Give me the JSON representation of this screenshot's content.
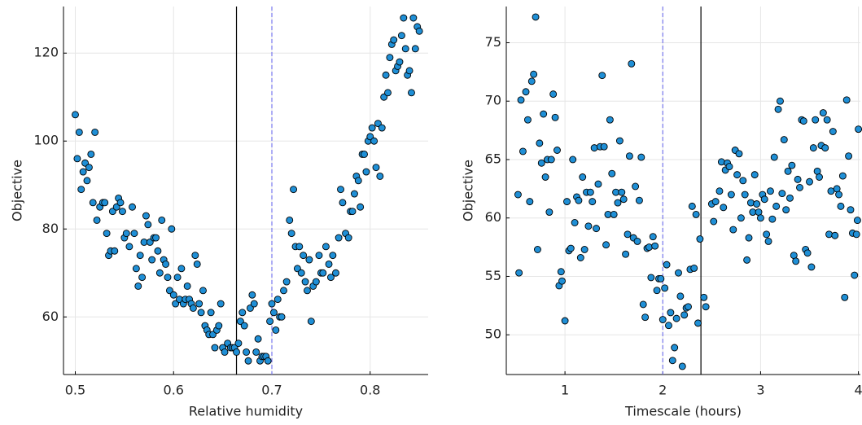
{
  "chart_data": [
    {
      "type": "scatter",
      "xlabel": "Relative humidity",
      "ylabel": "Objective",
      "color": "#1f8fd6",
      "grid": true,
      "xlim": [
        0.488,
        0.859
      ],
      "ylim": [
        46.9,
        130.6
      ],
      "xticks": [
        0.5,
        0.6,
        0.7,
        0.8
      ],
      "yticks": [
        60,
        80,
        100,
        120
      ],
      "vlines": [
        {
          "x": 0.664,
          "color": "#000000",
          "dashed": false
        },
        {
          "x": 0.7,
          "color": "#7777ee",
          "dashed": true
        }
      ],
      "x": [
        0.5,
        0.502,
        0.504,
        0.506,
        0.508,
        0.51,
        0.512,
        0.514,
        0.516,
        0.518,
        0.52,
        0.522,
        0.525,
        0.528,
        0.53,
        0.532,
        0.534,
        0.536,
        0.538,
        0.54,
        0.542,
        0.544,
        0.546,
        0.548,
        0.55,
        0.552,
        0.555,
        0.558,
        0.56,
        0.562,
        0.564,
        0.566,
        0.568,
        0.57,
        0.572,
        0.574,
        0.576,
        0.578,
        0.58,
        0.582,
        0.584,
        0.586,
        0.588,
        0.59,
        0.592,
        0.594,
        0.596,
        0.598,
        0.6,
        0.602,
        0.604,
        0.606,
        0.608,
        0.61,
        0.612,
        0.614,
        0.616,
        0.618,
        0.62,
        0.622,
        0.624,
        0.626,
        0.628,
        0.63,
        0.632,
        0.634,
        0.636,
        0.638,
        0.64,
        0.642,
        0.644,
        0.646,
        0.648,
        0.65,
        0.652,
        0.655,
        0.658,
        0.66,
        0.662,
        0.664,
        0.666,
        0.668,
        0.67,
        0.672,
        0.674,
        0.676,
        0.678,
        0.68,
        0.682,
        0.684,
        0.686,
        0.688,
        0.69,
        0.692,
        0.694,
        0.696,
        0.698,
        0.7,
        0.702,
        0.704,
        0.706,
        0.708,
        0.71,
        0.712,
        0.715,
        0.718,
        0.72,
        0.722,
        0.724,
        0.726,
        0.728,
        0.73,
        0.732,
        0.734,
        0.736,
        0.738,
        0.74,
        0.742,
        0.745,
        0.748,
        0.75,
        0.752,
        0.755,
        0.758,
        0.76,
        0.762,
        0.765,
        0.768,
        0.77,
        0.772,
        0.775,
        0.778,
        0.78,
        0.782,
        0.784,
        0.786,
        0.788,
        0.79,
        0.792,
        0.794,
        0.796,
        0.798,
        0.8,
        0.802,
        0.804,
        0.806,
        0.808,
        0.81,
        0.812,
        0.814,
        0.816,
        0.818,
        0.82,
        0.822,
        0.824,
        0.826,
        0.828,
        0.83,
        0.832,
        0.834,
        0.836,
        0.838,
        0.84,
        0.842,
        0.844,
        0.846,
        0.848,
        0.85
      ],
      "values": [
        106,
        96,
        102,
        89,
        93,
        95,
        91,
        94,
        97,
        86,
        102,
        82,
        85,
        86,
        86,
        79,
        74,
        75,
        84,
        75,
        85,
        87,
        86,
        84,
        78,
        79,
        76,
        85,
        79,
        71,
        67,
        74,
        69,
        77,
        83,
        81,
        77,
        73,
        78,
        78,
        75,
        70,
        82,
        73,
        72,
        69,
        66,
        80,
        65,
        63,
        69,
        64,
        71,
        63,
        64,
        67,
        64,
        63,
        62,
        74,
        72,
        63,
        61,
        66,
        58,
        57,
        56,
        61,
        56,
        53,
        57,
        58,
        63,
        53,
        52,
        54,
        53,
        53,
        53,
        52,
        54,
        59,
        61,
        58,
        52,
        50,
        62,
        65,
        63,
        52,
        55,
        50,
        51,
        51,
        51,
        50,
        59,
        63,
        61,
        57,
        64,
        60,
        60,
        66,
        68,
        82,
        79,
        89,
        76,
        71,
        76,
        70,
        74,
        68,
        66,
        73,
        59,
        67,
        68,
        74,
        70,
        70,
        76,
        72,
        69,
        74,
        70,
        78,
        89,
        86,
        79,
        78,
        84,
        84,
        88,
        92,
        91,
        85,
        97,
        97,
        93,
        100,
        101,
        103,
        100,
        94,
        104,
        92,
        103,
        110,
        115,
        111,
        119,
        122,
        123,
        116,
        117,
        118,
        124,
        128,
        121,
        115,
        116,
        111,
        128,
        121,
        126,
        125
      ]
    },
    {
      "type": "scatter",
      "xlabel": "Timescale (hours)",
      "ylabel": "Objective",
      "color": "#1f8fd6",
      "grid": true,
      "xlim": [
        0.4,
        4.02
      ],
      "ylim": [
        46.6,
        78.1
      ],
      "xticks": [
        1,
        2,
        3,
        4
      ],
      "yticks": [
        50,
        55,
        60,
        65,
        70,
        75
      ],
      "vlines": [
        {
          "x": 2.39,
          "color": "#000000",
          "dashed": false
        },
        {
          "x": 2,
          "color": "#7777ee",
          "dashed": true
        }
      ],
      "x": [
        0.52,
        0.53,
        0.55,
        0.57,
        0.6,
        0.62,
        0.64,
        0.66,
        0.68,
        0.7,
        0.72,
        0.74,
        0.76,
        0.78,
        0.8,
        0.82,
        0.84,
        0.86,
        0.88,
        0.9,
        0.92,
        0.94,
        0.96,
        0.97,
        1.0,
        1.02,
        1.04,
        1.06,
        1.08,
        1.1,
        1.12,
        1.14,
        1.16,
        1.18,
        1.2,
        1.22,
        1.24,
        1.26,
        1.28,
        1.3,
        1.32,
        1.34,
        1.36,
        1.38,
        1.4,
        1.42,
        1.44,
        1.46,
        1.48,
        1.5,
        1.52,
        1.54,
        1.56,
        1.58,
        1.6,
        1.62,
        1.64,
        1.66,
        1.68,
        1.7,
        1.72,
        1.74,
        1.76,
        1.78,
        1.8,
        1.82,
        1.84,
        1.86,
        1.88,
        1.9,
        1.92,
        1.94,
        1.96,
        1.98,
        2.0,
        2.02,
        2.04,
        2.06,
        2.08,
        2.1,
        2.12,
        2.14,
        2.16,
        2.18,
        2.2,
        2.22,
        2.24,
        2.26,
        2.28,
        2.3,
        2.32,
        2.34,
        2.36,
        2.38,
        2.42,
        2.44,
        2.5,
        2.52,
        2.54,
        2.58,
        2.6,
        2.62,
        2.64,
        2.66,
        2.68,
        2.7,
        2.72,
        2.74,
        2.76,
        2.78,
        2.8,
        2.82,
        2.84,
        2.86,
        2.88,
        2.9,
        2.92,
        2.94,
        2.96,
        2.98,
        3.0,
        3.02,
        3.04,
        3.06,
        3.08,
        3.1,
        3.12,
        3.14,
        3.16,
        3.18,
        3.2,
        3.22,
        3.24,
        3.26,
        3.28,
        3.3,
        3.32,
        3.34,
        3.36,
        3.38,
        3.4,
        3.42,
        3.44,
        3.46,
        3.48,
        3.5,
        3.52,
        3.54,
        3.56,
        3.58,
        3.6,
        3.62,
        3.64,
        3.66,
        3.68,
        3.7,
        3.72,
        3.74,
        3.76,
        3.78,
        3.8,
        3.82,
        3.84,
        3.86,
        3.88,
        3.9,
        3.92,
        3.94,
        3.96,
        3.98,
        3.99,
        4.0
      ],
      "values": [
        62,
        55.3,
        70.1,
        65.7,
        70.8,
        68.4,
        61.4,
        71.7,
        72.3,
        77.2,
        57.3,
        66.4,
        64.7,
        68.9,
        63.5,
        65,
        60.5,
        65,
        70.6,
        68.6,
        65.8,
        54.2,
        55.4,
        54.6,
        51.2,
        61.4,
        57.2,
        57.4,
        65,
        59.6,
        61.8,
        61.5,
        56.6,
        63.5,
        57.3,
        62.2,
        59.3,
        62.2,
        61.4,
        66,
        59.1,
        62.9,
        66.1,
        72.2,
        66.1,
        57.7,
        60.3,
        68.4,
        63.8,
        60.3,
        62.2,
        61.3,
        66.6,
        62.2,
        61.6,
        56.9,
        58.6,
        65.3,
        73.2,
        58.3,
        62.7,
        58,
        61.5,
        65.2,
        52.6,
        51.5,
        57.4,
        57.5,
        54.9,
        58.4,
        57.6,
        53.8,
        54.8,
        54.8,
        51.3,
        54,
        56,
        50.8,
        51.9,
        47.8,
        48.9,
        51.4,
        55.3,
        53.3,
        47.3,
        51.7,
        52.3,
        52.4,
        55.6,
        61,
        55.7,
        60.3,
        51,
        58.2,
        53.2,
        52.4,
        61.2,
        59.7,
        61.4,
        62.3,
        64.8,
        60.9,
        64.1,
        64.7,
        64.4,
        62,
        59,
        65.8,
        63.7,
        65.5,
        60,
        63.2,
        62,
        56.4,
        58.3,
        61.3,
        60.5,
        63.7,
        61.2,
        60.5,
        60,
        62,
        61.6,
        58.6,
        58,
        62.3,
        59.9,
        65.2,
        61,
        69.3,
        70,
        62.1,
        66.7,
        60.7,
        64,
        61.7,
        64.5,
        56.8,
        56.3,
        63.3,
        62.6,
        68.4,
        68.3,
        57.3,
        57,
        63.1,
        55.8,
        66,
        68.4,
        64,
        63.5,
        66.2,
        69,
        66,
        68.4,
        58.6,
        62.3,
        67.4,
        58.5,
        62.5,
        62,
        61,
        63.6,
        53.2,
        70.1,
        65.3,
        60.7,
        58.7,
        55.1,
        58.6,
        59.8,
        67.6
      ]
    }
  ]
}
